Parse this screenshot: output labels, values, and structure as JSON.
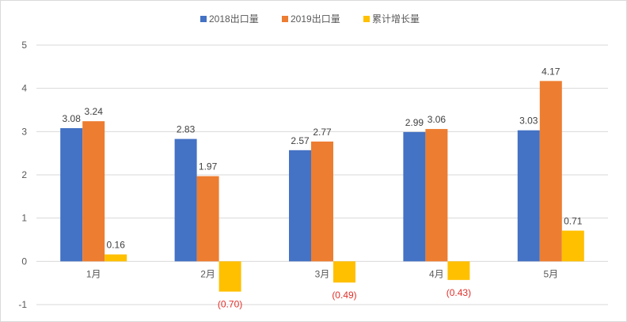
{
  "colors": {
    "s2018": "#4472c4",
    "s2019": "#ed7d31",
    "growth": "#ffc000",
    "negative_label": "#e0302a",
    "grid": "#d9d9d9"
  },
  "legend": [
    "2018出口量",
    "2019出口量",
    "累计增长量"
  ],
  "chart_data": {
    "type": "bar",
    "categories": [
      "1月",
      "2月",
      "3月",
      "4月",
      "5月"
    ],
    "series": [
      {
        "name": "2018出口量",
        "values": [
          3.08,
          2.83,
          2.57,
          2.99,
          3.03
        ],
        "labels": [
          "3.08",
          "2.83",
          "2.57",
          "2.99",
          "3.03"
        ]
      },
      {
        "name": "2019出口量",
        "values": [
          3.24,
          1.97,
          2.77,
          3.06,
          4.17
        ],
        "labels": [
          "3.24",
          "1.97",
          "2.77",
          "3.06",
          "4.17"
        ]
      },
      {
        "name": "累计增长量",
        "values": [
          0.16,
          -0.7,
          -0.49,
          -0.43,
          0.71
        ],
        "labels": [
          "0.16",
          "(0.70)",
          "(0.49)",
          "(0.43)",
          "0.71"
        ]
      }
    ],
    "yticks": [
      "-1",
      "0",
      "1",
      "2",
      "3",
      "4",
      "5"
    ],
    "ylim": [
      -1,
      5
    ],
    "grid": true,
    "legend_position": "top"
  }
}
